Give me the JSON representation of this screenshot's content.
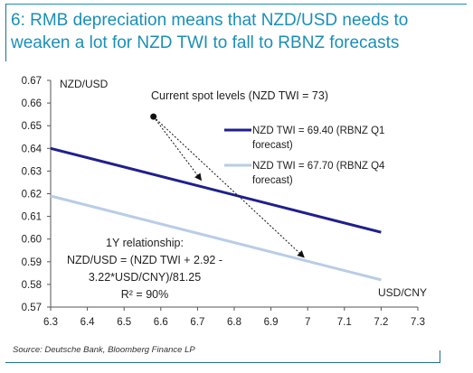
{
  "title_line1": "6: RMB depreciation means that NZD/USD needs to",
  "title_line2": "weaken a lot for NZD TWI to fall to RBNZ forecasts",
  "source": "Source:  Deutsche Bank, Bloomberg Finance LP",
  "colors": {
    "title": "#1a8fb8",
    "series1": "#1f1f8f",
    "series2": "#b8cde6",
    "frame": "#1f6f8b"
  },
  "chart_data": {
    "type": "line",
    "ylabel": "NZD/USD",
    "xlabel": "USD/CNY",
    "xlim": [
      6.3,
      7.3
    ],
    "ylim": [
      0.57,
      0.67
    ],
    "x_ticks": [
      "6.3",
      "6.4",
      "6.5",
      "6.6",
      "6.7",
      "6.8",
      "6.9",
      "7",
      "7.1",
      "7.2",
      "7.3"
    ],
    "y_ticks": [
      "0.67",
      "0.66",
      "0.65",
      "0.64",
      "0.63",
      "0.62",
      "0.61",
      "0.60",
      "0.59",
      "0.58",
      "0.57"
    ],
    "series": [
      {
        "name_line1": "NZD TWI = 69.40 (RBNZ Q1",
        "name_line2": "forecast)",
        "x": [
          6.3,
          7.2
        ],
        "y": [
          0.64,
          0.603
        ],
        "color": "#1f1f8f"
      },
      {
        "name_line1": "NZD TWI = 67.70 (RBNZ Q4",
        "name_line2": "forecast)",
        "x": [
          6.3,
          7.2
        ],
        "y": [
          0.619,
          0.582
        ],
        "color": "#b8cde6"
      }
    ],
    "spot": {
      "label": "Current spot levels (NZD TWI = 73)",
      "x": 6.58,
      "y": 0.654
    },
    "arrows": [
      {
        "to_x": 6.71,
        "to_y": 0.626
      },
      {
        "to_x": 6.99,
        "to_y": 0.592
      }
    ],
    "annotation": {
      "line1": "1Y relationship:",
      "line2": "NZD/USD = (NZD TWI + 2.92 -",
      "line3": "3.22*USD/CNY)/81.25",
      "line4": "R² = 90%"
    }
  }
}
